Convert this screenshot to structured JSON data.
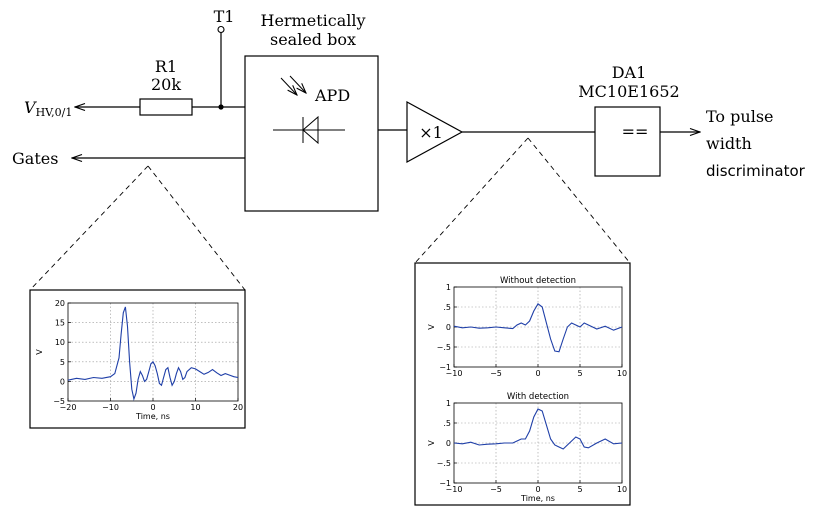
{
  "labels": {
    "t1": "T1",
    "r1_name": "R1",
    "r1_value": "20k",
    "vhv_main": "V",
    "vhv_sub": "HV,0/1",
    "gates": "Gates",
    "box_line1": "Hermetically",
    "box_line2": "sealed box",
    "apd": "APD",
    "amp": "×1",
    "da1_name": "DA1",
    "da1_part": "MC10E1652",
    "comparator_symbol": "==",
    "out_line1": "To pulse",
    "out_line2": "width",
    "out_line3": "discriminator"
  },
  "chart_data": [
    {
      "id": "gates-pulse",
      "type": "line",
      "title": "",
      "xlabel": "Time, ns",
      "ylabel": "V",
      "xlim": [
        -20,
        20
      ],
      "ylim": [
        -5,
        20
      ],
      "xticks": [
        -20,
        -10,
        0,
        10,
        20
      ],
      "yticks": [
        -5,
        0,
        5,
        10,
        15,
        20
      ],
      "grid": true,
      "series": [
        {
          "color": "#1f3fa8",
          "x": [
            -20,
            -18,
            -16,
            -14,
            -12,
            -10,
            -9,
            -8,
            -7.5,
            -7,
            -6.5,
            -6,
            -5.5,
            -5,
            -4.5,
            -4,
            -3.5,
            -3,
            -2.5,
            -2,
            -1.5,
            -1,
            -0.5,
            0,
            0.5,
            1,
            1.5,
            2,
            2.5,
            3,
            3.5,
            4,
            4.5,
            5,
            5.5,
            6,
            6.5,
            7,
            7.5,
            8,
            9,
            10,
            11,
            12,
            13,
            14,
            15,
            16,
            17,
            18,
            19,
            20
          ],
          "y": [
            0.3,
            0.8,
            0.5,
            1.0,
            0.8,
            1.2,
            2.0,
            6.0,
            12.0,
            17.5,
            19.0,
            14.0,
            5.0,
            -2.0,
            -4.5,
            -3.0,
            0.5,
            2.5,
            1.5,
            0.0,
            0.5,
            2.5,
            4.5,
            5.0,
            4.0,
            2.0,
            -0.5,
            -1.0,
            1.0,
            3.0,
            3.5,
            1.0,
            -1.0,
            0.0,
            2.0,
            3.5,
            2.5,
            0.5,
            1.0,
            2.5,
            3.5,
            3.2,
            2.5,
            1.8,
            2.3,
            3.0,
            2.2,
            1.5,
            2.0,
            1.6,
            1.2,
            1.0
          ]
        }
      ]
    },
    {
      "id": "without-detection",
      "type": "line",
      "title": "Without detection",
      "xlabel": "",
      "ylabel": "V",
      "xlim": [
        -10,
        10
      ],
      "ylim": [
        -1,
        1
      ],
      "xticks": [
        -10,
        -5,
        0,
        5,
        10
      ],
      "yticks": [
        -1,
        -0.5,
        0,
        0.5,
        1
      ],
      "grid": true,
      "series": [
        {
          "color": "#1f3fa8",
          "x": [
            -10,
            -9,
            -8,
            -7,
            -6,
            -5,
            -4,
            -3,
            -2.5,
            -2,
            -1.5,
            -1,
            -0.5,
            0,
            0.5,
            1,
            1.5,
            2,
            2.5,
            3,
            3.5,
            4,
            4.5,
            5,
            5.5,
            6,
            7,
            8,
            9,
            10
          ],
          "y": [
            0.02,
            -0.02,
            0.0,
            -0.03,
            -0.02,
            0.0,
            -0.02,
            -0.04,
            0.05,
            0.1,
            0.05,
            0.15,
            0.4,
            0.58,
            0.5,
            0.1,
            -0.3,
            -0.6,
            -0.62,
            -0.3,
            0.0,
            0.1,
            0.05,
            0.0,
            0.1,
            0.05,
            -0.05,
            0.02,
            -0.08,
            0.0
          ]
        }
      ]
    },
    {
      "id": "with-detection",
      "type": "line",
      "title": "With detection",
      "xlabel": "Time, ns",
      "ylabel": "V",
      "xlim": [
        -10,
        10
      ],
      "ylim": [
        -1,
        1
      ],
      "xticks": [
        -10,
        -5,
        0,
        5,
        10
      ],
      "yticks": [
        -1,
        -0.5,
        0,
        0.5,
        1
      ],
      "grid": true,
      "series": [
        {
          "color": "#1f3fa8",
          "x": [
            -10,
            -9,
            -8,
            -7,
            -6,
            -5,
            -4,
            -3,
            -2.5,
            -2,
            -1.5,
            -1,
            -0.5,
            0,
            0.5,
            1,
            1.5,
            2,
            2.5,
            3,
            3.5,
            4,
            4.5,
            5,
            5.5,
            6,
            7,
            8,
            9,
            10
          ],
          "y": [
            0.0,
            -0.02,
            0.02,
            -0.05,
            -0.03,
            -0.02,
            0.0,
            0.0,
            0.05,
            0.1,
            0.1,
            0.3,
            0.65,
            0.85,
            0.8,
            0.45,
            0.1,
            -0.05,
            -0.1,
            -0.15,
            -0.05,
            0.05,
            0.15,
            0.1,
            -0.1,
            -0.12,
            0.0,
            0.1,
            -0.02,
            0.0
          ]
        }
      ]
    }
  ]
}
